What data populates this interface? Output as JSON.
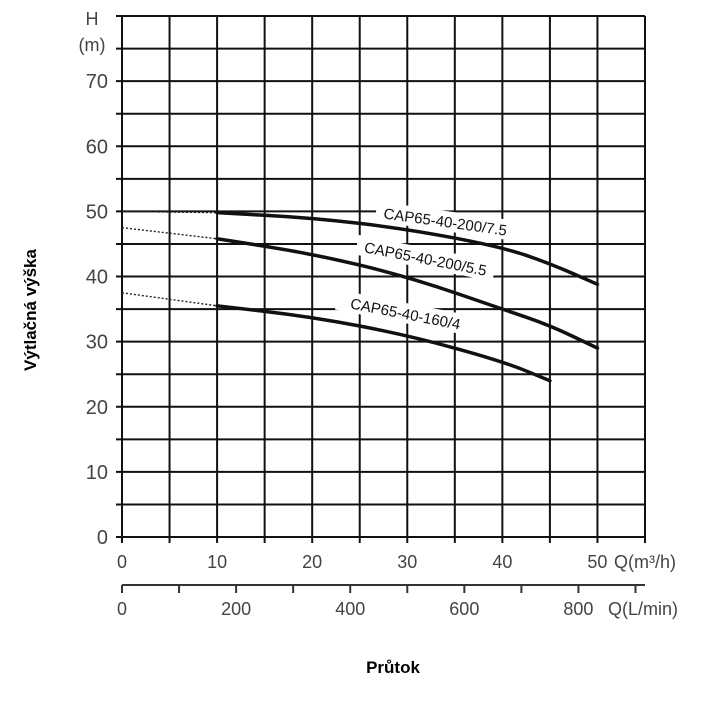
{
  "chart_data": {
    "type": "line",
    "title": "",
    "xlabel": "Průtok",
    "ylabel": "Výtlačná výška",
    "y_unit_label": [
      "H",
      "(m)"
    ],
    "x_unit_label": "Q(m³/h)",
    "x2_unit_label": "Q(L/min)",
    "xlim": [
      0,
      55
    ],
    "ylim": [
      0,
      80
    ],
    "x_ticks": [
      0,
      10,
      20,
      30,
      40,
      50
    ],
    "y_ticks": [
      0,
      10,
      20,
      30,
      40,
      50,
      60,
      70
    ],
    "x2_ticks": [
      0,
      200,
      400,
      600,
      800
    ],
    "x2_minor_ticks": [
      100,
      300,
      500,
      700,
      900
    ],
    "grid": true,
    "grid_step": {
      "x": 5,
      "y": 5
    },
    "series": [
      {
        "name": "CAP65-40-200/7.5",
        "dotted": {
          "x": [
            0,
            10
          ],
          "y": [
            50,
            49.8
          ]
        },
        "x": [
          10,
          20,
          30,
          40,
          45,
          50
        ],
        "y": [
          49.8,
          49,
          47.3,
          44.5,
          42,
          38.8
        ]
      },
      {
        "name": "CAP65-40-200/5.5",
        "dotted": {
          "x": [
            0,
            10
          ],
          "y": [
            47.5,
            45.8
          ]
        },
        "x": [
          10,
          20,
          30,
          40,
          45,
          50
        ],
        "y": [
          45.8,
          43.5,
          40,
          35,
          32.5,
          29
        ]
      },
      {
        "name": "CAP65-40-160/4",
        "dotted": {
          "x": [
            0,
            10
          ],
          "y": [
            37.5,
            35.5
          ]
        },
        "x": [
          10,
          20,
          30,
          40,
          45
        ],
        "y": [
          35.5,
          33.8,
          31,
          27,
          24
        ]
      }
    ]
  }
}
